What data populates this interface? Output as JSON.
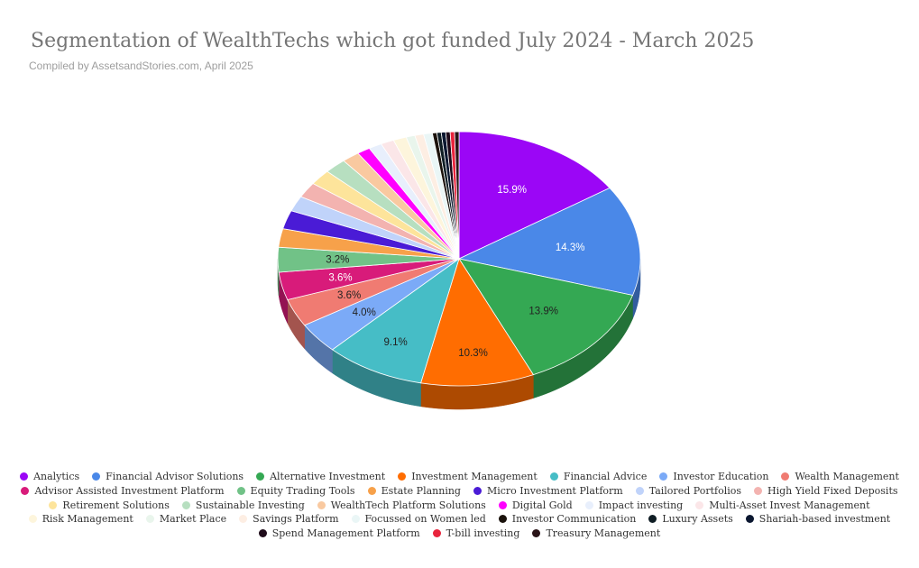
{
  "chart_data": {
    "type": "pie",
    "title": "Segmentation of WealthTechs which got funded July 2024 - March 2025",
    "subtitle": "Compiled by AssetsandStories.com, April 2025",
    "legend_position": "bottom",
    "three_d": true,
    "slices": [
      {
        "label": "Analytics",
        "value": 15.9,
        "color": "#9b06f6",
        "data_label": "15.9%"
      },
      {
        "label": "Financial Advisor Solutions",
        "value": 14.3,
        "color": "#4a88e8",
        "data_label": "14.3%"
      },
      {
        "label": "Alternative Investment",
        "value": 13.9,
        "color": "#34a853",
        "data_label": "13.9%"
      },
      {
        "label": "Investment Management",
        "value": 10.3,
        "color": "#ff6d01",
        "data_label": "10.3%"
      },
      {
        "label": "Financial Advice",
        "value": 9.1,
        "color": "#46bdc6",
        "data_label": "9.1%"
      },
      {
        "label": "Investor Education",
        "value": 4.0,
        "color": "#7baaf7",
        "data_label": "4.0%"
      },
      {
        "label": "Wealth Management",
        "value": 3.6,
        "color": "#f07b72",
        "data_label": "3.6%"
      },
      {
        "label": "Advisor Assisted Investment Platform",
        "value": 3.6,
        "color": "#d81b7a",
        "data_label": "3.6%"
      },
      {
        "label": "Equity Trading Tools",
        "value": 3.2,
        "color": "#71c287",
        "data_label": "3.2%"
      },
      {
        "label": "Estate Planning",
        "value": 2.4,
        "color": "#f7a14a",
        "data_label": ""
      },
      {
        "label": "Micro Investment Platform",
        "value": 2.4,
        "color": "#4a1bd6",
        "data_label": ""
      },
      {
        "label": "Tailored Portfolios",
        "value": 2.0,
        "color": "#c0d3fa",
        "data_label": ""
      },
      {
        "label": "High Yield Fixed Deposits",
        "value": 2.0,
        "color": "#f3b3b0",
        "data_label": ""
      },
      {
        "label": "Retirement Solutions",
        "value": 2.0,
        "color": "#fde49b",
        "data_label": ""
      },
      {
        "label": "Sustainable Investing",
        "value": 2.0,
        "color": "#b7dfc0",
        "data_label": ""
      },
      {
        "label": "WealthTech Platform Solutions",
        "value": 1.6,
        "color": "#f9c9a0",
        "data_label": ""
      },
      {
        "label": "Digital Gold",
        "value": 1.2,
        "color": "#ff00ff",
        "data_label": ""
      },
      {
        "label": "Impact investing",
        "value": 1.2,
        "color": "#e8effc",
        "data_label": ""
      },
      {
        "label": "Multi-Asset Invest Management",
        "value": 1.2,
        "color": "#fbe6e8",
        "data_label": ""
      },
      {
        "label": "Risk Management",
        "value": 1.2,
        "color": "#fdf5dc",
        "data_label": ""
      },
      {
        "label": "Market Place",
        "value": 0.8,
        "color": "#e9f5ec",
        "data_label": ""
      },
      {
        "label": "Savings Platform",
        "value": 0.8,
        "color": "#fdeee3",
        "data_label": ""
      },
      {
        "label": "Focussed on Women led",
        "value": 0.8,
        "color": "#eaf6f6",
        "data_label": ""
      },
      {
        "label": "Investor Communication",
        "value": 0.4,
        "color": "#1a120c",
        "data_label": ""
      },
      {
        "label": "Luxury Assets",
        "value": 0.4,
        "color": "#0f1d24",
        "data_label": ""
      },
      {
        "label": "Shariah-based investment",
        "value": 0.4,
        "color": "#0b1730",
        "data_label": ""
      },
      {
        "label": "Spend Management Platform",
        "value": 0.4,
        "color": "#1e0b1a",
        "data_label": ""
      },
      {
        "label": "T-bill investing",
        "value": 0.4,
        "color": "#e8243c",
        "data_label": ""
      },
      {
        "label": "Treasury Management",
        "value": 0.4,
        "color": "#2a1418",
        "data_label": ""
      }
    ],
    "legend_rows": [
      [
        0,
        1,
        2,
        3,
        4,
        5,
        6
      ],
      [
        7,
        8,
        9,
        10,
        11,
        12
      ],
      [
        13,
        14,
        15,
        16,
        17,
        18
      ],
      [
        19,
        20,
        21,
        22,
        23,
        24,
        25
      ],
      [
        26,
        27,
        28
      ]
    ]
  }
}
